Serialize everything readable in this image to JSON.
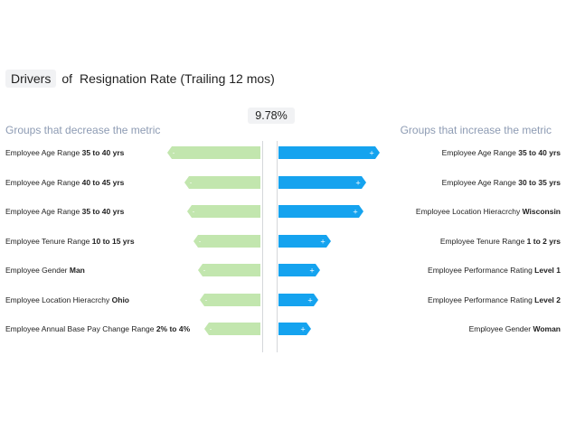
{
  "header": {
    "metric_chip": "Drivers",
    "connector": "of",
    "title": "Resignation Rate (Trailing 12 mos)"
  },
  "center_value": "9.78%",
  "groups": {
    "decrease_title": "Groups that decrease the metric",
    "increase_title": "Groups that increase the metric",
    "decrease_color": "#c2e6ae",
    "increase_color": "#15a3ef"
  },
  "decrease": [
    {
      "label": "Employee Age Range ",
      "value": "35 to 40 yrs",
      "level": 0.92,
      "sign": "-"
    },
    {
      "label": "Employee Age Range ",
      "value": "40 to 45 yrs",
      "level": 0.75,
      "sign": "-"
    },
    {
      "label": "Employee Age Range ",
      "value": "35 to 40 yrs",
      "level": 0.72,
      "sign": "-"
    },
    {
      "label": "Employee Tenure Range ",
      "value": "10 to 15 yrs",
      "level": 0.66,
      "sign": "-"
    },
    {
      "label": "Employee Gender ",
      "value": "Man",
      "level": 0.62,
      "sign": "-"
    },
    {
      "label": " Employee Location Hieracrchy ",
      "value": "Ohio",
      "level": 0.6,
      "sign": "-"
    },
    {
      "label": "Employee Annual Base Pay Change Range ",
      "value": "2% to 4%",
      "level": 0.55,
      "sign": "-"
    }
  ],
  "increase": [
    {
      "label": "Employee Age Range ",
      "value": "35 to 40 yrs",
      "level": 1.0,
      "sign": "+"
    },
    {
      "label": "Employee Age Range ",
      "value": "30 to 35 yrs",
      "level": 0.87,
      "sign": "+"
    },
    {
      "label": "Employee Location Hieracrchy ",
      "value": "Wisconsin",
      "level": 0.84,
      "sign": "+"
    },
    {
      "label": "Employee Tenure Range ",
      "value": "1 to 2 yrs",
      "level": 0.52,
      "sign": "+"
    },
    {
      "label": "Employee Performance Rating ",
      "value": "Level 1",
      "level": 0.41,
      "sign": "+"
    },
    {
      "label": "Employee Performance Rating ",
      "value": "Level 2",
      "level": 0.39,
      "sign": "+"
    },
    {
      "label": "Employee Gender ",
      "value": "Woman",
      "level": 0.32,
      "sign": "+"
    }
  ]
}
